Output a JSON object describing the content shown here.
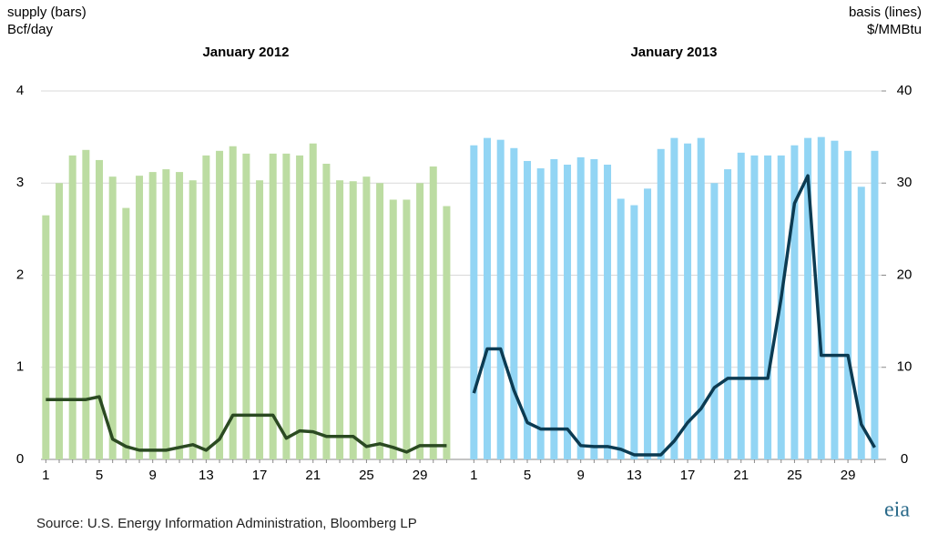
{
  "ylabel": "supply (bars)",
  "yunit": "Bcf/day",
  "y2label": "basis (lines)",
  "y2unit": "$/MMBtu",
  "source": "Source:  U.S. Energy Information Administration, Bloomberg LP",
  "logo": "eia",
  "chart_data": [
    {
      "type": "combo",
      "title": "January 2012",
      "categories": [
        1,
        null,
        null,
        null,
        5,
        null,
        null,
        null,
        9,
        null,
        null,
        null,
        13,
        null,
        null,
        null,
        17,
        null,
        null,
        null,
        21,
        null,
        null,
        null,
        25,
        null,
        null,
        null,
        29,
        null,
        null
      ],
      "ylim": [
        0,
        4
      ],
      "yticks": [
        0,
        1,
        2,
        3,
        4
      ],
      "y2lim": [
        0,
        40
      ],
      "series": [
        {
          "type": "bar",
          "color": "#bcdca2",
          "values": [
            2.65,
            3.0,
            3.3,
            3.36,
            3.25,
            3.07,
            2.73,
            3.08,
            3.12,
            3.15,
            3.12,
            3.03,
            3.3,
            3.35,
            3.4,
            3.32,
            3.03,
            3.32,
            3.32,
            3.3,
            3.43,
            3.21,
            3.03,
            3.02,
            3.07,
            3.0,
            2.82,
            2.82,
            3.0,
            3.18,
            2.75
          ]
        },
        {
          "type": "line",
          "axis": "y2",
          "color": "#2b4a22",
          "values": [
            6.5,
            6.5,
            6.5,
            6.5,
            6.8,
            2.2,
            1.4,
            1.0,
            1.0,
            1.0,
            1.3,
            1.6,
            1.0,
            2.2,
            4.8,
            4.8,
            4.8,
            4.8,
            2.3,
            3.1,
            3.0,
            2.5,
            2.5,
            2.5,
            1.4,
            1.7,
            1.3,
            0.8,
            1.5,
            1.5,
            1.5
          ]
        }
      ]
    },
    {
      "type": "combo",
      "title": "January 2013",
      "categories": [
        1,
        null,
        null,
        null,
        5,
        null,
        null,
        null,
        9,
        null,
        null,
        null,
        13,
        null,
        null,
        null,
        17,
        null,
        null,
        null,
        21,
        null,
        null,
        null,
        25,
        null,
        null,
        null,
        29,
        null,
        null
      ],
      "ylim": [
        0,
        4
      ],
      "y2lim": [
        0,
        40
      ],
      "y2ticks": [
        0,
        10,
        20,
        30,
        40
      ],
      "series": [
        {
          "type": "bar",
          "color": "#92d5f4",
          "values": [
            3.41,
            3.49,
            3.47,
            3.38,
            3.24,
            3.16,
            3.26,
            3.2,
            3.28,
            3.26,
            3.2,
            2.83,
            2.76,
            2.94,
            3.37,
            3.49,
            3.43,
            3.49,
            3.0,
            3.15,
            3.33,
            3.3,
            3.3,
            3.3,
            3.41,
            3.49,
            3.5,
            3.46,
            3.35,
            2.96,
            3.35
          ]
        },
        {
          "type": "line",
          "axis": "y2",
          "color": "#0c3b52",
          "values": [
            7.2,
            12,
            12,
            7.5,
            4,
            3.3,
            3.3,
            3.3,
            1.5,
            1.4,
            1.4,
            1.1,
            0.5,
            0.5,
            0.5,
            2.0,
            4.0,
            5.5,
            7.8,
            8.8,
            8.8,
            8.8,
            8.8,
            17.5,
            27.8,
            30.8,
            11.3,
            11.3,
            11.3,
            3.8,
            1.3
          ]
        }
      ]
    }
  ]
}
